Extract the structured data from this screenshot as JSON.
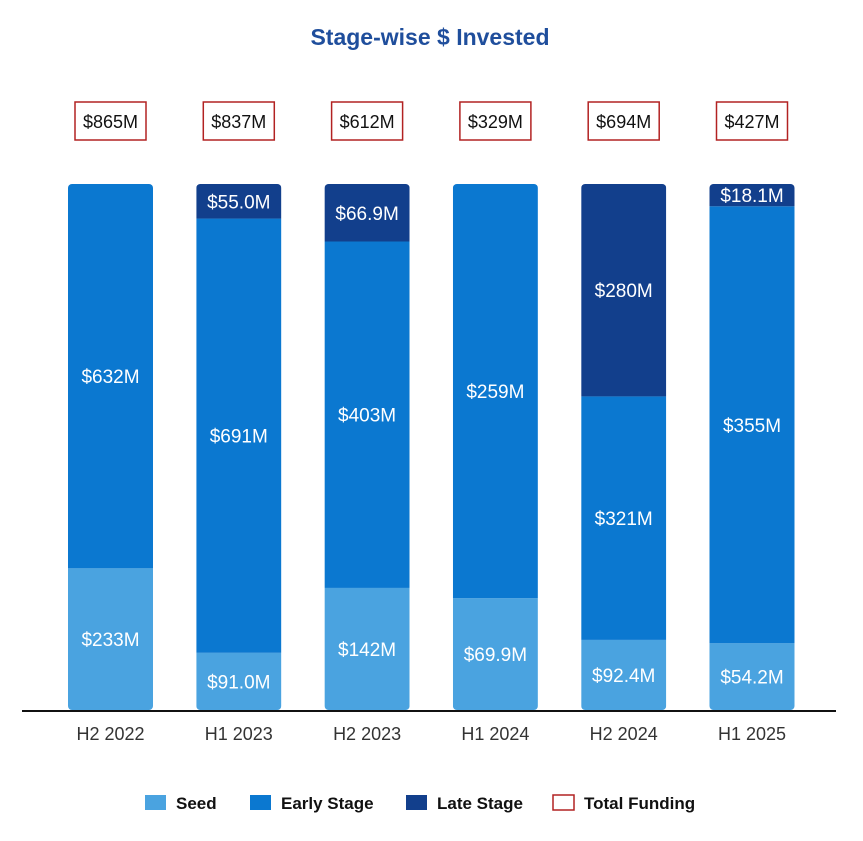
{
  "chart_data": {
    "type": "bar",
    "stacked": true,
    "title": "Stage-wise $ Invested",
    "xlabel": "",
    "ylabel": "",
    "grid": false,
    "legend_position": "bottom-center",
    "categories": [
      "H2 2022",
      "H1 2023",
      "H2 2023",
      "H1 2024",
      "H2 2024",
      "H1 2025"
    ],
    "series": [
      {
        "name": "Seed",
        "color": "#4aa3e0",
        "values": [
          233,
          91.0,
          142,
          69.9,
          92.4,
          54.2
        ],
        "labels": [
          "$233M",
          "$91.0M",
          "$142M",
          "$69.9M",
          "$92.4M",
          "$54.2M"
        ]
      },
      {
        "name": "Early Stage",
        "color": "#0b78d0",
        "values": [
          632,
          691,
          403,
          259,
          321,
          355
        ],
        "labels": [
          "$632M",
          "$691M",
          "$403M",
          "$259M",
          "$321M",
          "$355M"
        ]
      },
      {
        "name": "Late Stage",
        "color": "#123f8c",
        "values": [
          0,
          55.0,
          66.9,
          0,
          280,
          18.1
        ],
        "labels": [
          "",
          "$55.0M",
          "$66.9M",
          "",
          "$280M",
          "$18.1M"
        ]
      }
    ],
    "totals": {
      "name": "Total Funding",
      "border_color": "#b22222",
      "values": [
        865,
        837,
        612,
        329,
        694,
        427
      ],
      "labels": [
        "$865M",
        "$837M",
        "$612M",
        "$329M",
        "$694M",
        "$427M"
      ]
    }
  }
}
